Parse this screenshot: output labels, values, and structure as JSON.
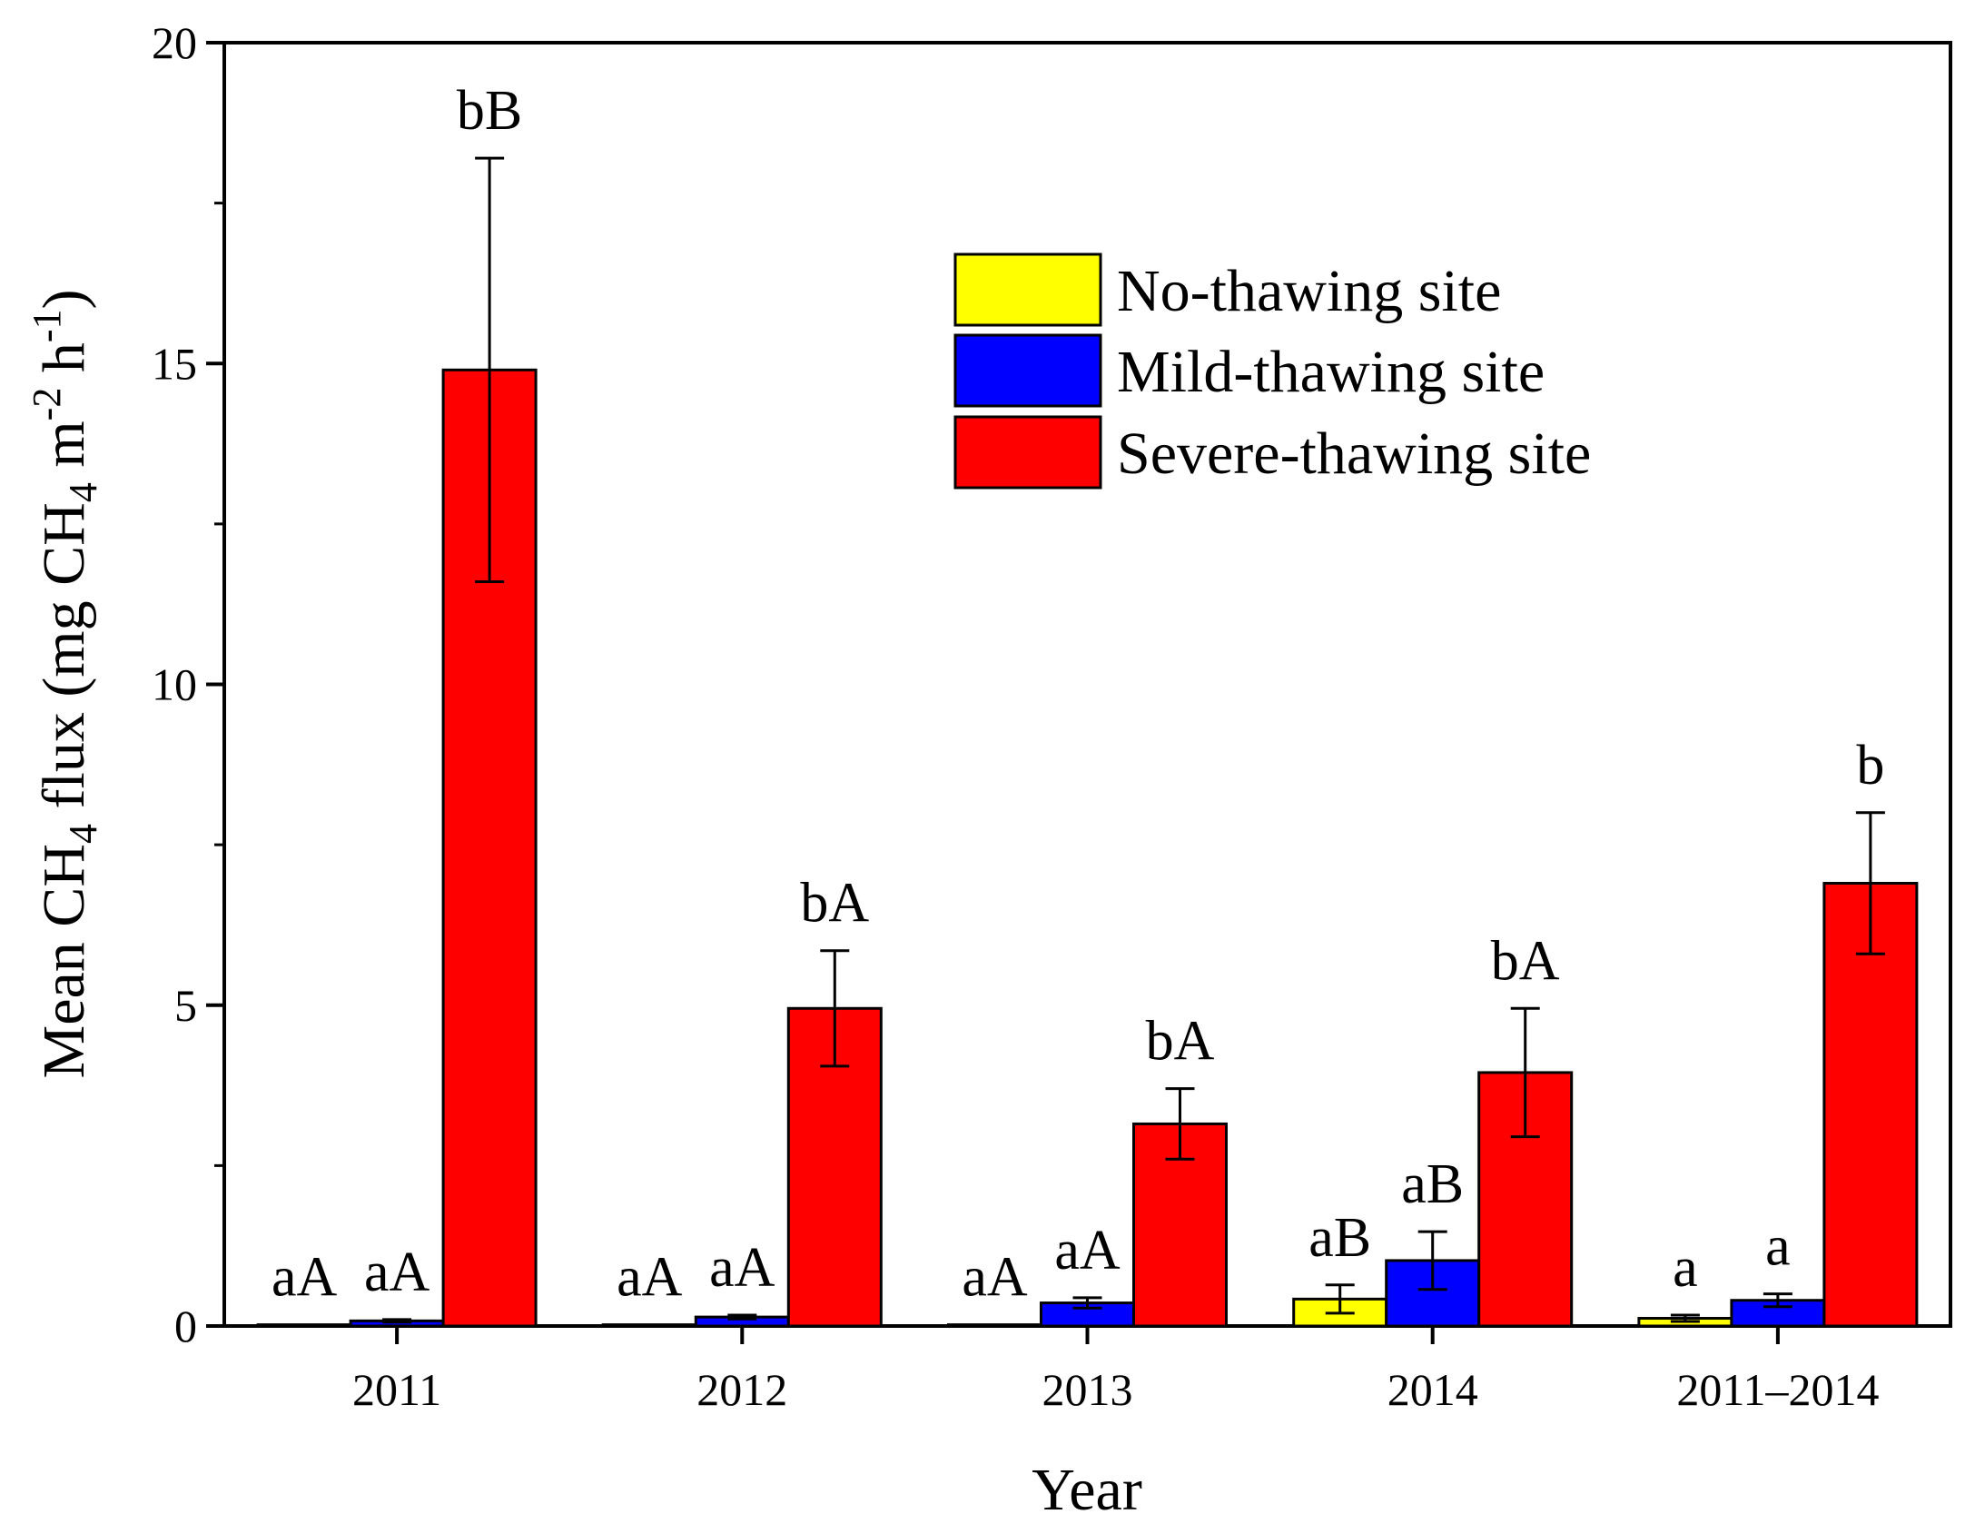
{
  "chart_data": {
    "type": "bar",
    "title": "",
    "xlabel": "Year",
    "ylabel": {
      "p1": "Mean CH",
      "sub1": "4",
      "p2": " flux (mg CH",
      "sub2": "4",
      "p3": " m",
      "sup1": "-2",
      "p4": " h",
      "sup2": "-1",
      "p5": ")"
    },
    "ylim": [
      0,
      20
    ],
    "yticks": [
      0,
      5,
      10,
      15,
      20
    ],
    "categories": [
      "2011",
      "2012",
      "2013",
      "2014",
      "2011–2014"
    ],
    "legend_position": "top-right",
    "series": [
      {
        "name": "No-thawing site",
        "color": "#ffff00",
        "values": [
          0.02,
          0.02,
          0.02,
          0.42,
          0.12
        ],
        "errors": [
          0.0,
          0.0,
          0.0,
          0.22,
          0.05
        ],
        "labels": [
          "aA",
          "aA",
          "aA",
          "aB",
          "a"
        ]
      },
      {
        "name": "Mild-thawing site",
        "color": "#0000ff",
        "values": [
          0.08,
          0.14,
          0.36,
          1.02,
          0.4
        ],
        "errors": [
          0.02,
          0.03,
          0.08,
          0.45,
          0.1
        ],
        "labels": [
          "aA",
          "aA",
          "aA",
          "aB",
          "a"
        ]
      },
      {
        "name": "Severe-thawing site",
        "color": "#ff0000",
        "values": [
          14.9,
          4.95,
          3.15,
          3.95,
          6.9
        ],
        "errors": [
          3.3,
          0.9,
          0.55,
          1.0,
          1.1
        ],
        "labels": [
          "bB",
          "bA",
          "bA",
          "bA",
          "b"
        ]
      }
    ]
  }
}
